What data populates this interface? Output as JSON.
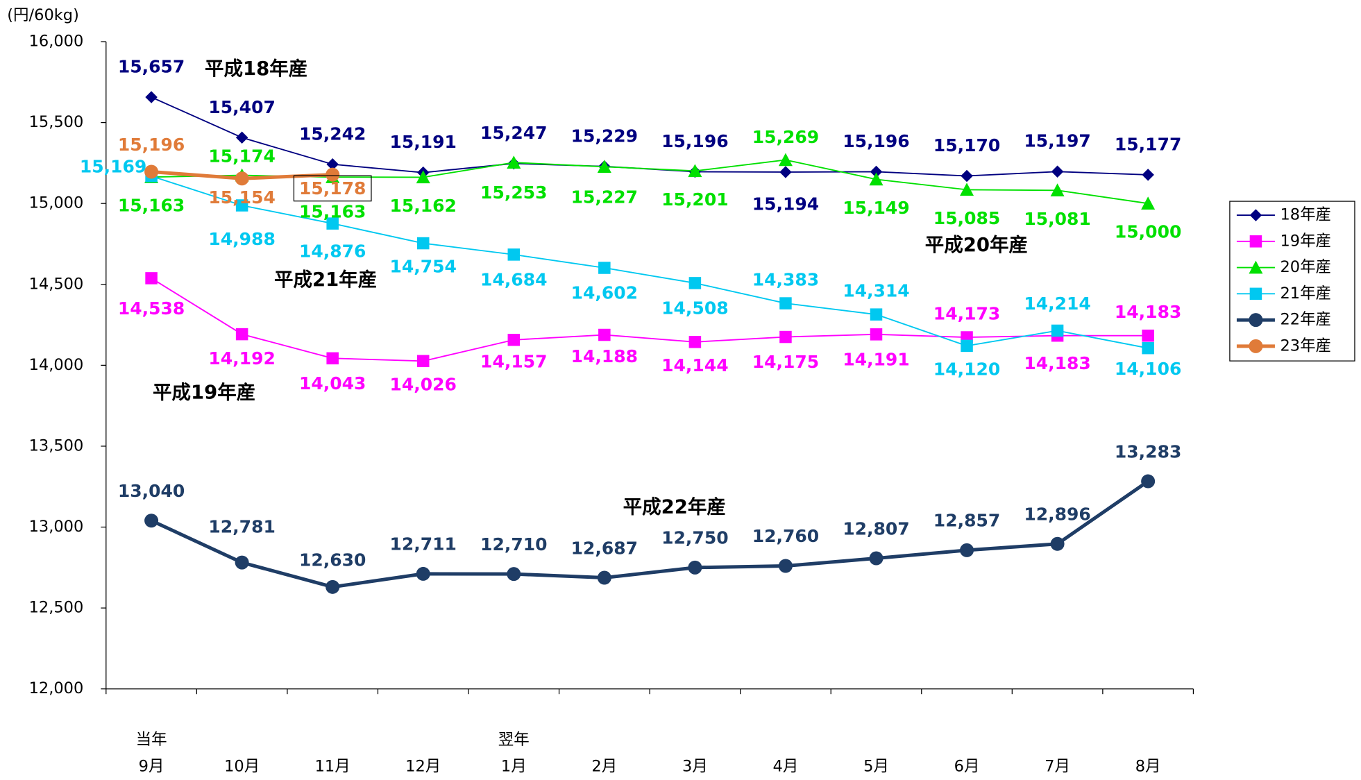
{
  "chart_data": {
    "type": "line",
    "y_unit": "(円/60kg)",
    "categories": [
      "9月",
      "10月",
      "11月",
      "12月",
      "1月",
      "2月",
      "3月",
      "4月",
      "5月",
      "6月",
      "7月",
      "8月"
    ],
    "category_groups": [
      "当年",
      null,
      null,
      null,
      "翌年",
      null,
      null,
      null,
      null,
      null,
      null,
      null
    ],
    "ylim": [
      12000,
      16000
    ],
    "yticks": [
      {
        "value": 12000,
        "label": "12,000"
      },
      {
        "value": 12500,
        "label": "12,500"
      },
      {
        "value": 13000,
        "label": "13,000"
      },
      {
        "value": 13500,
        "label": "13,500"
      },
      {
        "value": 14000,
        "label": "14,000"
      },
      {
        "value": 14500,
        "label": "14,500"
      },
      {
        "value": 15000,
        "label": "15,000"
      },
      {
        "value": 15500,
        "label": "15,500"
      },
      {
        "value": 16000,
        "label": "16,000"
      }
    ],
    "legend": "right",
    "series": [
      {
        "name": "18年産",
        "color": "#000080",
        "marker": "diamond",
        "line_width": 1.5,
        "values": [
          15657,
          15407,
          15242,
          15191,
          15247,
          15229,
          15196,
          15194,
          15196,
          15170,
          15197,
          15177
        ],
        "value_labels": [
          "15,657",
          "15,407",
          "15,242",
          "15,191",
          "15,247",
          "15,229",
          "15,196",
          "15,194",
          "15,196",
          "15,170",
          "15,197",
          "15,177"
        ]
      },
      {
        "name": "19年産",
        "color": "#FF00FF",
        "marker": "square",
        "line_width": 1.5,
        "values": [
          14538,
          14192,
          14043,
          14026,
          14157,
          14188,
          14144,
          14175,
          14191,
          14173,
          14183,
          14183
        ],
        "value_labels": [
          "14,538",
          "14,192",
          "14,043",
          "14,026",
          "14,157",
          "14,188",
          "14,144",
          "14,175",
          "14,191",
          "14,173",
          "14,183",
          "14,183"
        ]
      },
      {
        "name": "20年産",
        "color": "#00E000",
        "marker": "triangle",
        "line_width": 1.5,
        "values": [
          15163,
          15174,
          15163,
          15162,
          15253,
          15227,
          15201,
          15269,
          15149,
          15085,
          15081,
          15000
        ],
        "value_labels": [
          "15,163",
          "15,174",
          "15,163",
          "15,162",
          "15,253",
          "15,227",
          "15,201",
          "15,269",
          "15,149",
          "15,085",
          "15,081",
          "15,000"
        ]
      },
      {
        "name": "21年産",
        "color": "#00C8F0",
        "marker": "square",
        "line_width": 1.5,
        "values": [
          15169,
          14988,
          14876,
          14754,
          14684,
          14602,
          14508,
          14383,
          14314,
          14120,
          14214,
          14106
        ],
        "value_labels": [
          "15,169",
          "14,988",
          "14,876",
          "14,754",
          "14,684",
          "14,602",
          "14,508",
          "14,383",
          "14,314",
          "14,120",
          "14,214",
          "14,106"
        ]
      },
      {
        "name": "22年産",
        "color": "#1F3D66",
        "marker": "circle",
        "line_width": 4,
        "values": [
          13040,
          12781,
          12630,
          12711,
          12710,
          12687,
          12750,
          12760,
          12807,
          12857,
          12896,
          13283
        ],
        "value_labels": [
          "13,040",
          "12,781",
          "12,630",
          "12,711",
          "12,710",
          "12,687",
          "12,750",
          "12,760",
          "12,807",
          "12,857",
          "12,896",
          "13,283"
        ]
      },
      {
        "name": "23年産",
        "color": "#E07B39",
        "marker": "circle",
        "line_width": 4,
        "values": [
          15196,
          15154,
          15178,
          null,
          null,
          null,
          null,
          null,
          null,
          null,
          null,
          null
        ],
        "value_labels": [
          "15,196",
          "15,154",
          "15,178",
          null,
          null,
          null,
          null,
          null,
          null,
          null,
          null,
          null
        ]
      }
    ],
    "annotations": [
      "平成18年産",
      "平成21年産",
      "平成19年産",
      "平成22年産",
      "平成20年産"
    ]
  }
}
